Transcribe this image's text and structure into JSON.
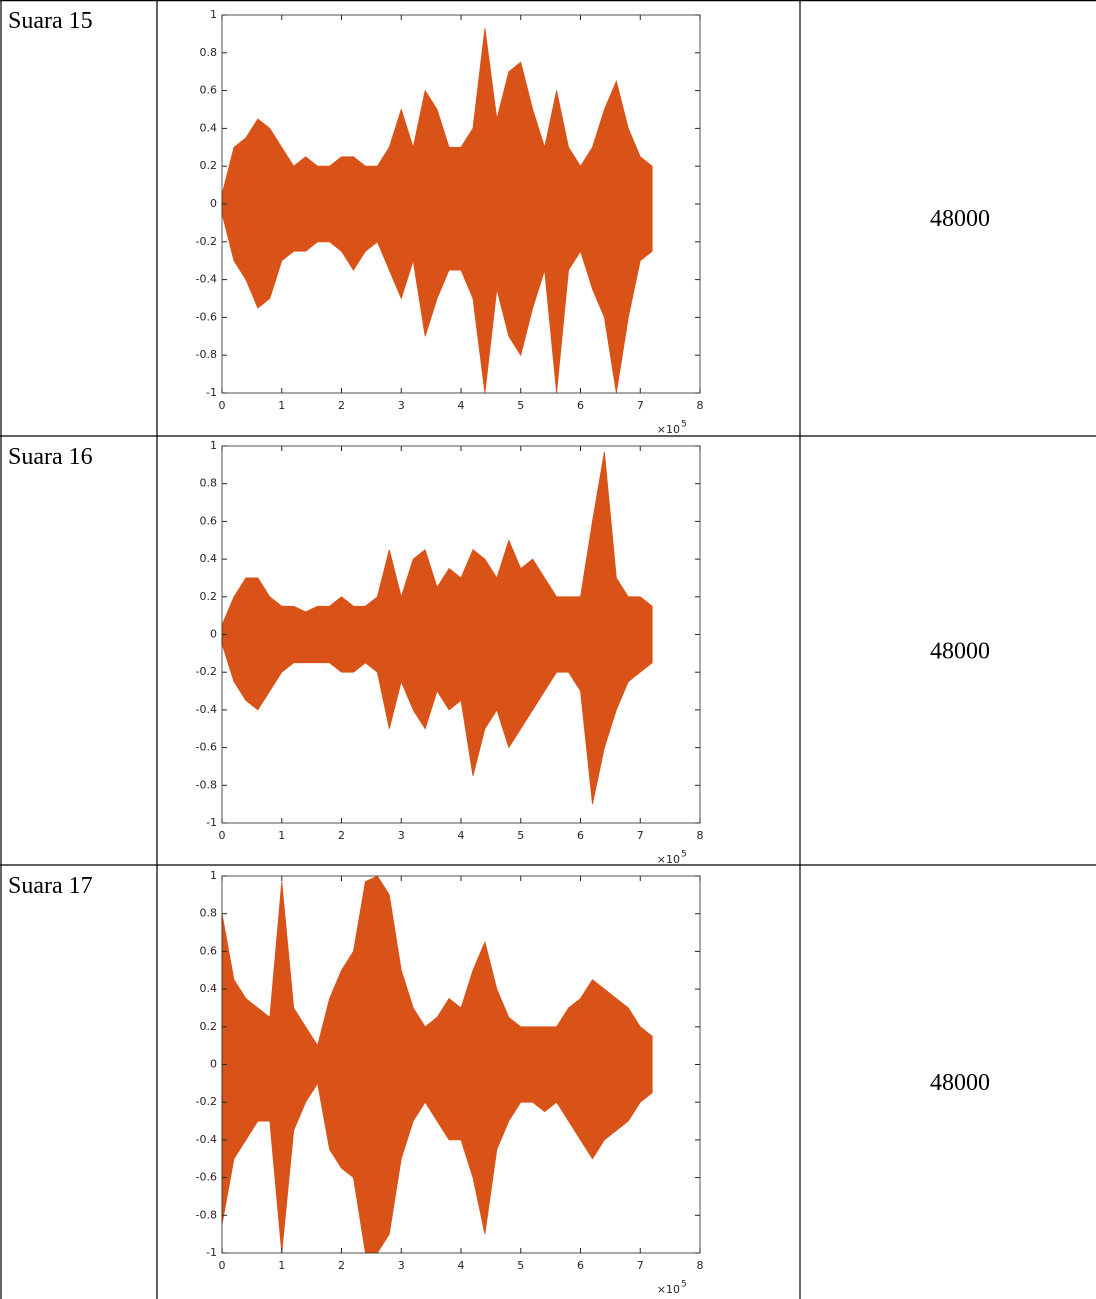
{
  "table": {
    "rows": [
      {
        "label": "Suara 15",
        "rate": 48000,
        "chart": {
          "type": "area",
          "color": "#d95319",
          "xlim": [
            0,
            8
          ],
          "ylim": [
            -1,
            1
          ],
          "xticks": [
            0,
            1,
            2,
            3,
            4,
            5,
            6,
            7,
            8
          ],
          "yticks": [
            -1,
            -0.8,
            -0.6,
            -0.4,
            -0.2,
            0,
            0.2,
            0.4,
            0.6,
            0.8,
            1
          ],
          "x_multiplier": "×10",
          "x_exponent": "5",
          "x": [
            0,
            0.2,
            0.4,
            0.6,
            0.8,
            1,
            1.2,
            1.4,
            1.6,
            1.8,
            2,
            2.2,
            2.4,
            2.6,
            2.8,
            3,
            3.2,
            3.4,
            3.6,
            3.8,
            4,
            4.2,
            4.4,
            4.6,
            4.8,
            5,
            5.2,
            5.4,
            5.6,
            5.8,
            6,
            6.2,
            6.4,
            6.6,
            6.8,
            7,
            7.2
          ],
          "upper": [
            0.05,
            0.3,
            0.35,
            0.45,
            0.4,
            0.3,
            0.2,
            0.25,
            0.2,
            0.2,
            0.25,
            0.25,
            0.2,
            0.2,
            0.3,
            0.5,
            0.3,
            0.6,
            0.5,
            0.3,
            0.3,
            0.4,
            0.93,
            0.45,
            0.7,
            0.75,
            0.5,
            0.3,
            0.6,
            0.3,
            0.2,
            0.3,
            0.5,
            0.65,
            0.4,
            0.25,
            0.2
          ],
          "lower": [
            -0.05,
            -0.3,
            -0.4,
            -0.55,
            -0.5,
            -0.3,
            -0.25,
            -0.25,
            -0.2,
            -0.2,
            -0.25,
            -0.35,
            -0.25,
            -0.2,
            -0.35,
            -0.5,
            -0.3,
            -0.7,
            -0.5,
            -0.35,
            -0.35,
            -0.5,
            -1,
            -0.45,
            -0.7,
            -0.8,
            -0.55,
            -0.35,
            -1,
            -0.35,
            -0.25,
            -0.45,
            -0.6,
            -1,
            -0.6,
            -0.3,
            -0.25
          ]
        }
      },
      {
        "label": "Suara 16",
        "rate": 48000,
        "chart": {
          "type": "area",
          "color": "#d95319",
          "xlim": [
            0,
            8
          ],
          "ylim": [
            -1,
            1
          ],
          "xticks": [
            0,
            1,
            2,
            3,
            4,
            5,
            6,
            7,
            8
          ],
          "yticks": [
            -1,
            -0.8,
            -0.6,
            -0.4,
            -0.2,
            0,
            0.2,
            0.4,
            0.6,
            0.8,
            1
          ],
          "x_multiplier": "×10",
          "x_exponent": "5",
          "x": [
            0,
            0.2,
            0.4,
            0.6,
            0.8,
            1,
            1.2,
            1.4,
            1.6,
            1.8,
            2,
            2.2,
            2.4,
            2.6,
            2.8,
            3,
            3.2,
            3.4,
            3.6,
            3.8,
            4,
            4.2,
            4.4,
            4.6,
            4.8,
            5,
            5.2,
            5.4,
            5.6,
            5.8,
            6,
            6.2,
            6.4,
            6.6,
            6.8,
            7,
            7.2
          ],
          "upper": [
            0.05,
            0.2,
            0.3,
            0.3,
            0.2,
            0.15,
            0.15,
            0.12,
            0.15,
            0.15,
            0.2,
            0.15,
            0.15,
            0.2,
            0.45,
            0.2,
            0.4,
            0.45,
            0.25,
            0.35,
            0.3,
            0.45,
            0.4,
            0.3,
            0.5,
            0.35,
            0.4,
            0.3,
            0.2,
            0.2,
            0.2,
            0.6,
            0.97,
            0.3,
            0.2,
            0.2,
            0.15
          ],
          "lower": [
            -0.05,
            -0.25,
            -0.35,
            -0.4,
            -0.3,
            -0.2,
            -0.15,
            -0.15,
            -0.15,
            -0.15,
            -0.2,
            -0.2,
            -0.15,
            -0.2,
            -0.5,
            -0.25,
            -0.4,
            -0.5,
            -0.3,
            -0.4,
            -0.35,
            -0.75,
            -0.5,
            -0.4,
            -0.6,
            -0.5,
            -0.4,
            -0.3,
            -0.2,
            -0.2,
            -0.3,
            -0.9,
            -0.6,
            -0.4,
            -0.25,
            -0.2,
            -0.15
          ]
        }
      },
      {
        "label": "Suara 17",
        "rate": 48000,
        "chart": {
          "type": "area",
          "color": "#d95319",
          "xlim": [
            0,
            8
          ],
          "ylim": [
            -1,
            1
          ],
          "xticks": [
            0,
            1,
            2,
            3,
            4,
            5,
            6,
            7,
            8
          ],
          "yticks": [
            -1,
            -0.8,
            -0.6,
            -0.4,
            -0.2,
            0,
            0.2,
            0.4,
            0.6,
            0.8,
            1
          ],
          "x_multiplier": "×10",
          "x_exponent": "5",
          "x": [
            0,
            0.2,
            0.4,
            0.6,
            0.8,
            1,
            1.2,
            1.4,
            1.6,
            1.8,
            2,
            2.2,
            2.4,
            2.6,
            2.8,
            3,
            3.2,
            3.4,
            3.6,
            3.8,
            4,
            4.2,
            4.4,
            4.6,
            4.8,
            5,
            5.2,
            5.4,
            5.6,
            5.8,
            6,
            6.2,
            6.4,
            6.6,
            6.8,
            7,
            7.2
          ],
          "upper": [
            0.8,
            0.45,
            0.35,
            0.3,
            0.25,
            0.97,
            0.3,
            0.2,
            0.1,
            0.35,
            0.5,
            0.6,
            0.97,
            1,
            0.9,
            0.5,
            0.3,
            0.2,
            0.25,
            0.35,
            0.3,
            0.5,
            0.65,
            0.4,
            0.25,
            0.2,
            0.2,
            0.2,
            0.2,
            0.3,
            0.35,
            0.45,
            0.4,
            0.35,
            0.3,
            0.2,
            0.15
          ],
          "lower": [
            -0.85,
            -0.5,
            -0.4,
            -0.3,
            -0.3,
            -1,
            -0.35,
            -0.2,
            -0.1,
            -0.45,
            -0.55,
            -0.6,
            -1,
            -1,
            -0.9,
            -0.5,
            -0.3,
            -0.2,
            -0.3,
            -0.4,
            -0.4,
            -0.6,
            -0.9,
            -0.45,
            -0.3,
            -0.2,
            -0.2,
            -0.25,
            -0.2,
            -0.3,
            -0.4,
            -0.5,
            -0.4,
            -0.35,
            -0.3,
            -0.2,
            -0.15
          ]
        }
      }
    ]
  }
}
